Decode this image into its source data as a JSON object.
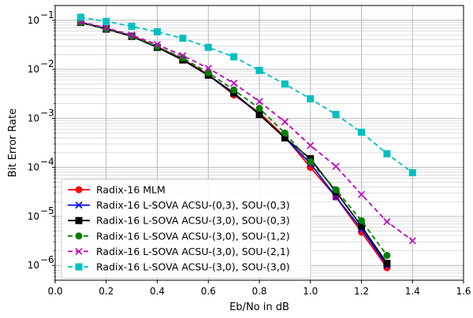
{
  "chart_data": {
    "type": "line",
    "xlabel": "Eb/No in dB",
    "ylabel": "Bit Error Rate",
    "xlim": [
      0.0,
      1.6
    ],
    "ylim": [
      5e-07,
      0.2
    ],
    "yscale": "log",
    "grid": "major and minor",
    "legend_position": "lower-left",
    "x_ticks": [
      0.0,
      0.2,
      0.4,
      0.6,
      0.8,
      1.0,
      1.2,
      1.4,
      1.6
    ],
    "x_tick_labels": [
      "0.0",
      "0.2",
      "0.4",
      "0.6",
      "0.8",
      "1.0",
      "1.2",
      "1.4",
      "1.6"
    ],
    "y_ticks": [
      {
        "value": 1e-06,
        "base": "10",
        "exp": "−6"
      },
      {
        "value": 1e-05,
        "base": "10",
        "exp": "−5"
      },
      {
        "value": 0.0001,
        "base": "10",
        "exp": "−4"
      },
      {
        "value": 0.001,
        "base": "10",
        "exp": "−3"
      },
      {
        "value": 0.01,
        "base": "10",
        "exp": "−2"
      },
      {
        "value": 0.1,
        "base": "10",
        "exp": "−1"
      }
    ],
    "series": [
      {
        "name": "Radix-16 MLM",
        "color": "#ff0000",
        "linestyle": "solid",
        "marker": "circle",
        "x": [
          0.1,
          0.2,
          0.3,
          0.4,
          0.5,
          0.6,
          0.7,
          0.8,
          0.9,
          1.0,
          1.1,
          1.2,
          1.3
        ],
        "y": [
          0.09,
          0.068,
          0.048,
          0.029,
          0.016,
          0.0078,
          0.003,
          0.0013,
          0.00042,
          0.0001,
          2.5e-05,
          4.8e-06,
          9e-07
        ]
      },
      {
        "name": "Radix-16 L-SOVA ACSU-(0,3), SOU-(0,3)",
        "color": "#0000ff",
        "linestyle": "solid",
        "marker": "x",
        "x": [
          0.1,
          0.2,
          0.3,
          0.4,
          0.5,
          0.6,
          0.7,
          0.8,
          0.9,
          1.0,
          1.1,
          1.2,
          1.3
        ],
        "y": [
          0.09,
          0.067,
          0.047,
          0.028,
          0.0155,
          0.0075,
          0.0032,
          0.0012,
          0.0004,
          0.00012,
          2.5e-05,
          5.5e-06,
          1e-06
        ]
      },
      {
        "name": "Radix-16 L-SOVA ACSU-(3,0), SOU-(0,3)",
        "color": "#000000",
        "linestyle": "solid",
        "marker": "square",
        "x": [
          0.1,
          0.2,
          0.3,
          0.4,
          0.5,
          0.6,
          0.7,
          0.8,
          0.9,
          1.0,
          1.1,
          1.2,
          1.3
        ],
        "y": [
          0.09,
          0.066,
          0.047,
          0.028,
          0.0155,
          0.0076,
          0.0033,
          0.0012,
          0.0004,
          0.00015,
          3.2e-05,
          6.3e-06,
          1.1e-06
        ]
      },
      {
        "name": "Radix-16 L-SOVA ACSU-(3,0), SOU-(1,2)",
        "color": "#008000",
        "linestyle": "dashed",
        "marker": "circle",
        "x": [
          0.1,
          0.2,
          0.3,
          0.4,
          0.5,
          0.6,
          0.7,
          0.8,
          0.9,
          1.0,
          1.1,
          1.2,
          1.3
        ],
        "y": [
          0.09,
          0.067,
          0.048,
          0.029,
          0.017,
          0.0085,
          0.0038,
          0.0016,
          0.0005,
          0.00013,
          3.5e-05,
          8.2e-06,
          1.6e-06
        ]
      },
      {
        "name": "Radix-16 L-SOVA ACSU-(3,0), SOU-(2,1)",
        "color": "#bf00bf",
        "linestyle": "dashed",
        "marker": "x",
        "x": [
          0.1,
          0.2,
          0.3,
          0.4,
          0.5,
          0.6,
          0.7,
          0.8,
          0.9,
          1.0,
          1.1,
          1.2,
          1.3,
          1.4
        ],
        "y": [
          0.093,
          0.07,
          0.05,
          0.032,
          0.019,
          0.0105,
          0.0052,
          0.0022,
          0.00085,
          0.00028,
          0.000105,
          2.8e-05,
          7.8e-06,
          3.2e-06
        ]
      },
      {
        "name": "Radix-16 L-SOVA ACSU-(3,0), SOU-(3,0)",
        "color": "#00bfbf",
        "linestyle": "dashed",
        "marker": "square",
        "x": [
          0.1,
          0.2,
          0.3,
          0.4,
          0.5,
          0.6,
          0.7,
          0.8,
          0.9,
          1.0,
          1.1,
          1.2,
          1.3,
          1.4
        ],
        "y": [
          0.115,
          0.095,
          0.075,
          0.058,
          0.043,
          0.028,
          0.018,
          0.0095,
          0.005,
          0.0025,
          0.0012,
          0.00052,
          0.00019,
          7.8e-05
        ]
      }
    ]
  }
}
